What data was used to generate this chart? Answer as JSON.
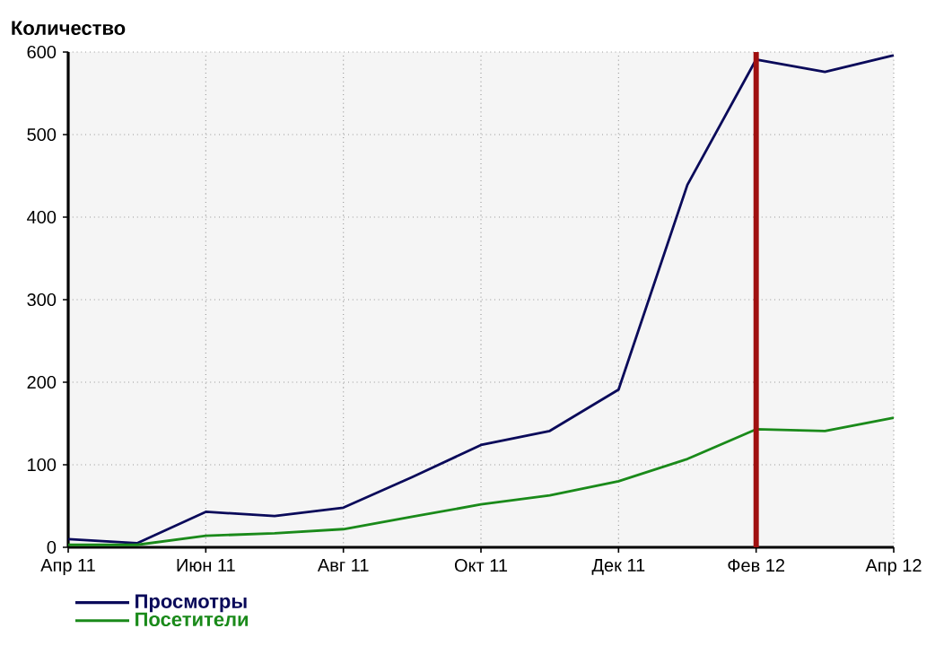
{
  "chart_data": {
    "type": "line",
    "ylabel": "Количество",
    "x": [
      "2011-04",
      "2011-05",
      "2011-06",
      "2011-07",
      "2011-08",
      "2011-09",
      "2011-10",
      "2011-11",
      "2011-12",
      "2012-01",
      "2012-02",
      "2012-03",
      "2012-04"
    ],
    "series": [
      {
        "name": "Просмотры",
        "color": "#0a0a5a",
        "values": [
          10,
          5,
          43,
          38,
          48,
          85,
          124,
          141,
          191,
          439,
          591,
          576,
          596
        ]
      },
      {
        "name": "Посетители",
        "color": "#1a8a1a",
        "values": [
          3,
          3,
          14,
          17,
          22,
          37,
          52,
          63,
          80,
          107,
          143,
          141,
          157
        ]
      }
    ],
    "xlim": [
      "2011-04",
      "2012-04"
    ],
    "xticks": [
      {
        "value": "2011-04",
        "label": "Апр 11"
      },
      {
        "value": "2011-06",
        "label": "Июн 11"
      },
      {
        "value": "2011-08",
        "label": "Авг 11"
      },
      {
        "value": "2011-10",
        "label": "Окт 11"
      },
      {
        "value": "2011-12",
        "label": "Дек 11"
      },
      {
        "value": "2012-02",
        "label": "Фев 12"
      },
      {
        "value": "2012-04",
        "label": "Апр 12"
      }
    ],
    "ylim": [
      0,
      600
    ],
    "yticks": [
      0,
      100,
      200,
      300,
      400,
      500,
      600
    ],
    "ref_lines": [
      {
        "axis": "x",
        "value": "2012-02",
        "color": "#a01010"
      }
    ],
    "grid": true,
    "legend": "bottom left",
    "line_style": "solid",
    "marker": "none"
  }
}
